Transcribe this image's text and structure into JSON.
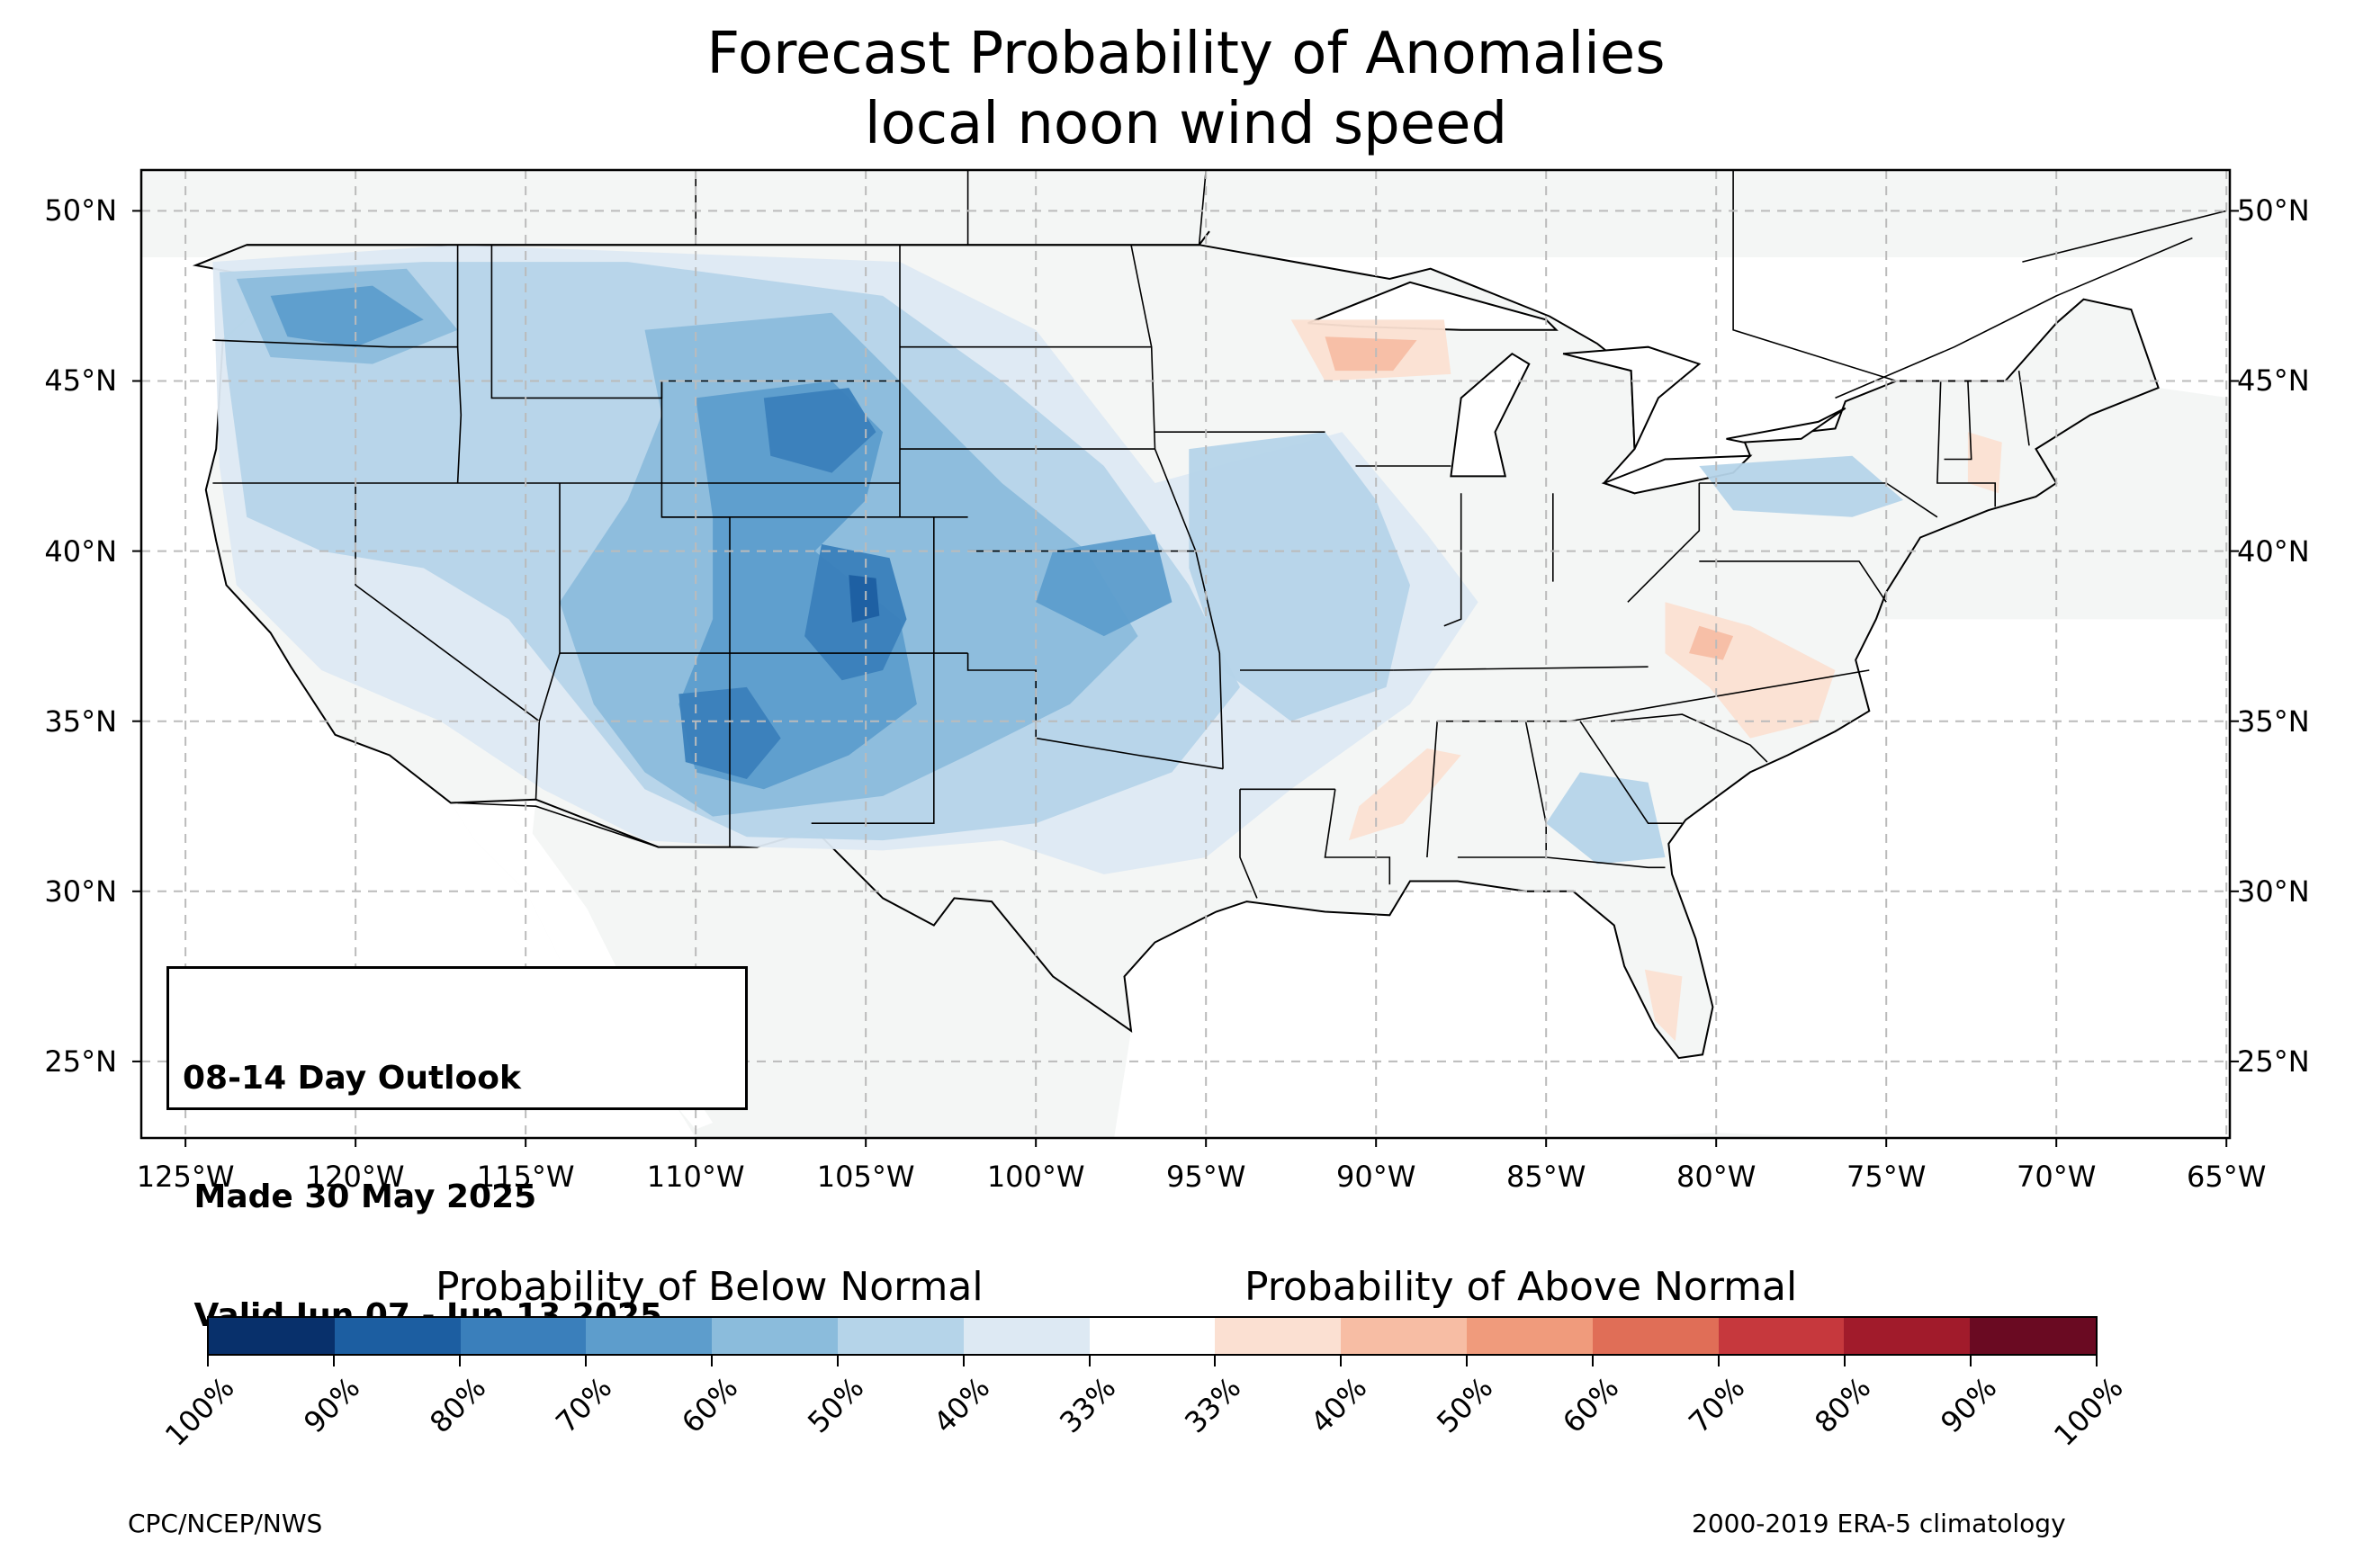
{
  "title": {
    "line1": "Forecast Probability of Anomalies",
    "line2": "local noon wind speed"
  },
  "map": {
    "lon_range": [
      -126.3,
      -64.9
    ],
    "lat_range": [
      22.75,
      51.2
    ],
    "lat_ticks": [
      "50°N",
      "45°N",
      "40°N",
      "35°N",
      "30°N",
      "25°N"
    ],
    "lat_values": [
      50,
      45,
      40,
      35,
      30,
      25
    ],
    "lon_ticks": [
      "125°W",
      "120°W",
      "115°W",
      "110°W",
      "105°W",
      "100°W",
      "95°W",
      "90°W",
      "85°W",
      "80°W",
      "75°W",
      "70°W",
      "65°W"
    ],
    "lon_values": [
      -125,
      -120,
      -115,
      -110,
      -105,
      -100,
      -95,
      -90,
      -85,
      -80,
      -75,
      -70,
      -65
    ],
    "gridlines": "dashed",
    "land_color": "#f4f6f5",
    "regions": [
      {
        "name": "Pacific Northwest",
        "category": "below",
        "level": "50-60%"
      },
      {
        "name": "Central Rockies / Colorado",
        "category": "below",
        "level": "70-80%"
      },
      {
        "name": "Arizona / New Mexico",
        "category": "below",
        "level": "70-80%"
      },
      {
        "name": "Central Plains",
        "category": "below",
        "level": "50-70%"
      },
      {
        "name": "Upper Midwest / Iowa",
        "category": "below",
        "level": "40-50%"
      },
      {
        "name": "Northern Wisconsin / Upper Michigan",
        "category": "above",
        "level": "40-50%"
      },
      {
        "name": "Virginia / North Carolina",
        "category": "above",
        "level": "40-50%"
      },
      {
        "name": "Mississippi / Louisiana",
        "category": "above",
        "level": "40-50%"
      },
      {
        "name": "New England",
        "category": "above",
        "level": "33-40%"
      }
    ]
  },
  "info_box": {
    "line1": "08-14 Day Outlook",
    "line2": " Made 30 May 2025",
    "line3": " Valid Jun 07 - Jun 13 2025"
  },
  "colorbar": {
    "below_label": "Probability of Below Normal",
    "above_label": "Probability of Above Normal",
    "colors": [
      "#08306b",
      "#1c5ea1",
      "#3a7fbb",
      "#5d9dcc",
      "#8bbcdc",
      "#b5d4e9",
      "#dde9f3",
      "#ffffff",
      "#fbe0d2",
      "#f7bda4",
      "#f09b7c",
      "#e06e57",
      "#c6383d",
      "#a11b2b",
      "#6a0a22"
    ],
    "tick_labels": [
      "100%",
      "90%",
      "80%",
      "70%",
      "60%",
      "50%",
      "40%",
      "33%",
      "33%",
      "40%",
      "50%",
      "60%",
      "70%",
      "80%",
      "90%",
      "100%"
    ]
  },
  "footer": {
    "left": "CPC/NCEP/NWS",
    "right": "2000-2019 ERA-5 climatology"
  }
}
